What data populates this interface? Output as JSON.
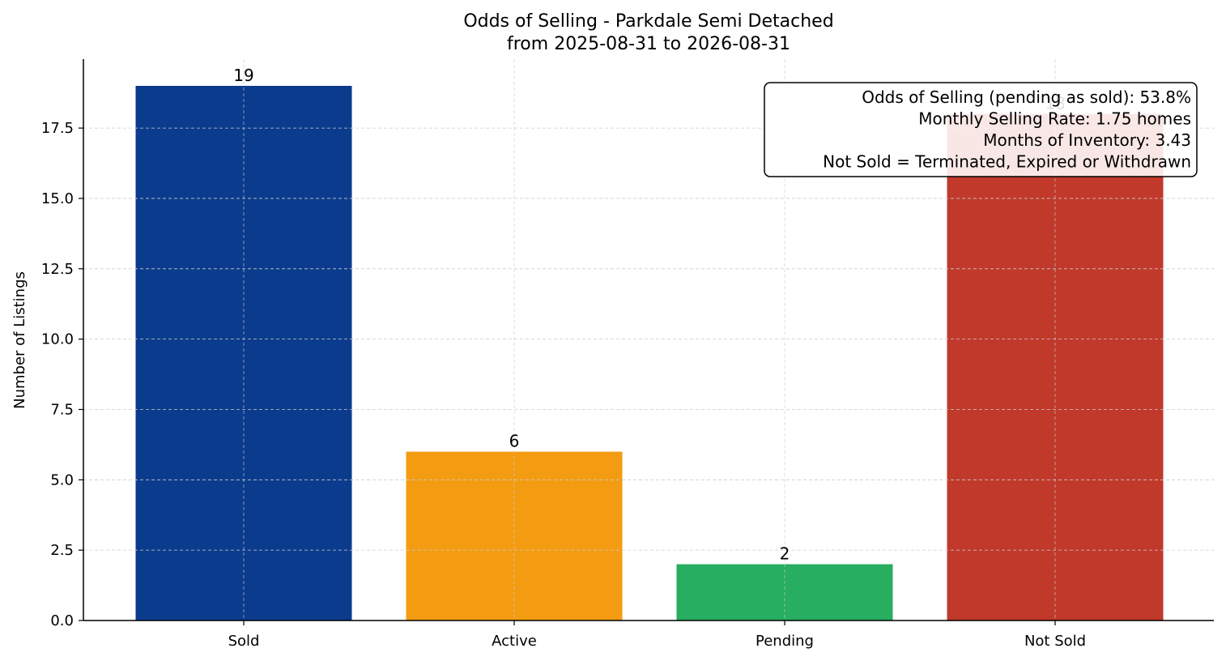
{
  "chart_data": {
    "type": "bar",
    "title": "Odds of Selling - Parkdale Semi Detached",
    "subtitle": "from 2025-08-31 to 2026-08-31",
    "xlabel": "",
    "ylabel": "Number of Listings",
    "categories": [
      "Sold",
      "Active",
      "Pending",
      "Not Sold"
    ],
    "values": [
      19,
      6,
      2,
      18
    ],
    "value_labels": [
      "19",
      "6",
      "2",
      "18"
    ],
    "colors": [
      "#0b3b8c",
      "#f39c12",
      "#27ae60",
      "#c0392b"
    ],
    "ylim": [
      0,
      20
    ],
    "yticks": [
      0.0,
      2.5,
      5.0,
      7.5,
      10.0,
      12.5,
      15.0,
      17.5
    ],
    "ytick_labels": [
      "0.0",
      "2.5",
      "5.0",
      "7.5",
      "10.0",
      "12.5",
      "15.0",
      "17.5"
    ],
    "grid": true,
    "annotation": {
      "placement": "top-right",
      "lines": [
        "Odds of Selling (pending as sold): 53.8%",
        "Monthly Selling Rate: 1.75 homes",
        "Months of Inventory: 3.43",
        "Not Sold = Terminated, Expired or Withdrawn"
      ]
    }
  }
}
